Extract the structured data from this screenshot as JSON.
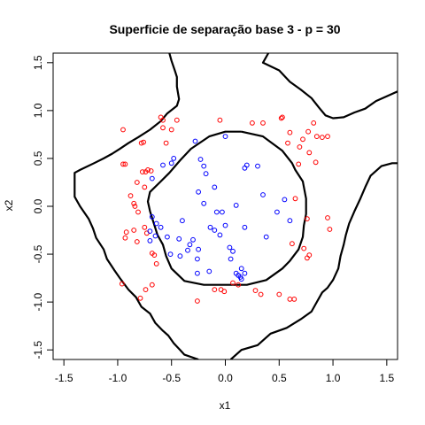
{
  "chart_data": {
    "type": "scatter",
    "title": "Superficie de separação base 3 - p = 30",
    "xlabel": "x1",
    "ylabel": "x2",
    "xlim": [
      -1.6,
      1.6
    ],
    "ylim": [
      -1.6,
      1.6
    ],
    "xticks": [
      -1.5,
      -1.0,
      -0.5,
      0.0,
      0.5,
      1.0,
      1.5
    ],
    "yticks": [
      -1.5,
      -1.0,
      -0.5,
      0.0,
      0.5,
      1.0,
      1.5
    ],
    "xtick_labels": [
      "-1.5",
      "-1.0",
      "-0.5",
      "0.0",
      "0.5",
      "1.0",
      "1.5"
    ],
    "ytick_labels": [
      "-1.5",
      "-1.0",
      "-0.5",
      "0.0",
      "0.5",
      "1.0",
      "1.5"
    ],
    "grid": false,
    "colors": {
      "class_red": "#ff0000",
      "class_blue": "#0000ff",
      "boundary": "#000000"
    },
    "series": [
      {
        "color": "#ff0000",
        "points": [
          [
            -0.95,
            0.8
          ],
          [
            -0.95,
            0.44
          ],
          [
            -0.93,
            0.44
          ],
          [
            -0.6,
            0.93
          ],
          [
            -0.58,
            0.9
          ],
          [
            -0.58,
            0.82
          ],
          [
            -0.45,
            0.9
          ],
          [
            -0.78,
            0.66
          ],
          [
            -0.76,
            0.67
          ],
          [
            -0.55,
            0.66
          ],
          [
            -0.5,
            0.8
          ],
          [
            -0.77,
            0.36
          ],
          [
            -0.74,
            0.36
          ],
          [
            -0.72,
            0.38
          ],
          [
            -0.69,
            0.37
          ],
          [
            -0.82,
            0.25
          ],
          [
            -0.75,
            0.2
          ],
          [
            -0.88,
            0.11
          ],
          [
            -0.84,
            0.0
          ],
          [
            -0.85,
            0.03
          ],
          [
            -0.81,
            -0.06
          ],
          [
            -0.92,
            -0.27
          ],
          [
            -0.93,
            -0.33
          ],
          [
            -0.85,
            -0.25
          ],
          [
            -0.75,
            -0.22
          ],
          [
            -0.73,
            -0.28
          ],
          [
            -0.82,
            -0.37
          ],
          [
            -0.68,
            -0.49
          ],
          [
            -0.66,
            -0.51
          ],
          [
            -0.64,
            -0.6
          ],
          [
            -0.96,
            -0.81
          ],
          [
            -0.79,
            -0.96
          ],
          [
            -0.74,
            -0.87
          ],
          [
            -0.68,
            -0.82
          ],
          [
            -0.05,
            0.9
          ],
          [
            0.25,
            0.87
          ],
          [
            0.35,
            0.87
          ],
          [
            0.52,
            0.92
          ],
          [
            0.53,
            0.93
          ],
          [
            0.6,
            0.77
          ],
          [
            0.77,
            0.78
          ],
          [
            0.72,
            0.7
          ],
          [
            0.69,
            0.62
          ],
          [
            0.58,
            0.66
          ],
          [
            0.82,
            0.87
          ],
          [
            0.85,
            0.73
          ],
          [
            0.9,
            0.72
          ],
          [
            0.95,
            0.73
          ],
          [
            0.78,
            0.56
          ],
          [
            0.84,
            0.46
          ],
          [
            0.68,
            0.44
          ],
          [
            0.65,
            0.08
          ],
          [
            0.76,
            -0.13
          ],
          [
            0.95,
            -0.12
          ],
          [
            0.97,
            -0.24
          ],
          [
            0.62,
            -0.39
          ],
          [
            0.73,
            -0.44
          ],
          [
            0.78,
            -0.51
          ],
          [
            0.76,
            -0.54
          ],
          [
            0.07,
            -0.8
          ],
          [
            0.12,
            -0.82
          ],
          [
            0.28,
            -0.88
          ],
          [
            0.33,
            -0.92
          ],
          [
            0.5,
            -0.92
          ],
          [
            0.6,
            -0.97
          ],
          [
            0.64,
            -0.97
          ],
          [
            -0.1,
            -0.87
          ],
          [
            -0.01,
            -0.89
          ],
          [
            -0.04,
            -0.87
          ],
          [
            -0.26,
            -0.99
          ]
        ]
      },
      {
        "color": "#0000ff",
        "points": [
          [
            -0.28,
            0.68
          ],
          [
            -0.23,
            0.49
          ],
          [
            -0.2,
            0.42
          ],
          [
            -0.48,
            0.5
          ],
          [
            -0.5,
            0.45
          ],
          [
            -0.58,
            0.43
          ],
          [
            -0.68,
            0.29
          ],
          [
            -0.18,
            0.34
          ],
          [
            -0.1,
            0.2
          ],
          [
            -0.25,
            0.15
          ],
          [
            -0.2,
            0.03
          ],
          [
            0.0,
            0.73
          ],
          [
            0.18,
            0.4
          ],
          [
            0.2,
            0.43
          ],
          [
            0.3,
            0.42
          ],
          [
            -0.68,
            -0.11
          ],
          [
            -0.64,
            -0.18
          ],
          [
            -0.6,
            -0.22
          ],
          [
            -0.7,
            -0.26
          ],
          [
            -0.65,
            -0.31
          ],
          [
            -0.54,
            -0.32
          ],
          [
            -0.7,
            -0.36
          ],
          [
            -0.4,
            -0.15
          ],
          [
            -0.43,
            -0.34
          ],
          [
            -0.33,
            -0.4
          ],
          [
            -0.3,
            -0.35
          ],
          [
            -0.25,
            -0.45
          ],
          [
            -0.35,
            -0.46
          ],
          [
            -0.42,
            -0.52
          ],
          [
            -0.51,
            -0.5
          ],
          [
            -0.26,
            -0.55
          ],
          [
            -0.26,
            -0.7
          ],
          [
            -0.1,
            -0.25
          ],
          [
            -0.14,
            -0.22
          ],
          [
            -0.08,
            -0.06
          ],
          [
            -0.03,
            -0.06
          ],
          [
            0.0,
            -0.2
          ],
          [
            -0.05,
            -0.3
          ],
          [
            0.04,
            -0.43
          ],
          [
            0.07,
            -0.47
          ],
          [
            0.05,
            -0.55
          ],
          [
            0.1,
            0.01
          ],
          [
            0.18,
            -0.22
          ],
          [
            0.35,
            0.12
          ],
          [
            0.48,
            -0.06
          ],
          [
            0.55,
            0.07
          ],
          [
            0.6,
            -0.15
          ],
          [
            0.38,
            -0.32
          ],
          [
            -0.15,
            -0.68
          ],
          [
            0.1,
            -0.7
          ],
          [
            0.12,
            -0.72
          ],
          [
            0.14,
            -0.74
          ],
          [
            0.15,
            -0.76
          ],
          [
            0.18,
            -0.7
          ],
          [
            0.15,
            -0.65
          ]
        ]
      }
    ],
    "boundaries": [
      [
        [
          0.15,
          0.78
        ],
        [
          0.35,
          0.73
        ],
        [
          0.53,
          0.58
        ],
        [
          0.62,
          0.45
        ],
        [
          0.65,
          0.38
        ],
        [
          0.72,
          0.26
        ],
        [
          0.75,
          0.08
        ],
        [
          0.75,
          -0.08
        ],
        [
          0.73,
          -0.2
        ],
        [
          0.72,
          -0.32
        ],
        [
          0.68,
          -0.45
        ],
        [
          0.6,
          -0.57
        ],
        [
          0.53,
          -0.65
        ],
        [
          0.38,
          -0.77
        ],
        [
          0.2,
          -0.82
        ],
        [
          0.0,
          -0.82
        ],
        [
          -0.2,
          -0.82
        ],
        [
          -0.38,
          -0.78
        ],
        [
          -0.5,
          -0.65
        ],
        [
          -0.55,
          -0.52
        ],
        [
          -0.58,
          -0.4
        ],
        [
          -0.63,
          -0.3
        ],
        [
          -0.67,
          -0.16
        ],
        [
          -0.7,
          -0.05
        ],
        [
          -0.72,
          0.05
        ],
        [
          -0.7,
          0.15
        ],
        [
          -0.6,
          0.26
        ],
        [
          -0.52,
          0.35
        ],
        [
          -0.42,
          0.48
        ],
        [
          -0.32,
          0.6
        ],
        [
          -0.15,
          0.73
        ],
        [
          0.0,
          0.78
        ],
        [
          0.15,
          0.78
        ]
      ],
      [
        [
          -0.52,
          1.6
        ],
        [
          -0.5,
          1.52
        ],
        [
          -0.47,
          1.42
        ],
        [
          -0.45,
          1.35
        ],
        [
          -0.45,
          1.25
        ],
        [
          -0.43,
          1.12
        ],
        [
          -0.45,
          1.05
        ],
        [
          -0.54,
          0.97
        ],
        [
          -0.6,
          0.89
        ],
        [
          -0.7,
          0.8
        ],
        [
          -0.81,
          0.72
        ],
        [
          -0.9,
          0.66
        ],
        [
          -0.98,
          0.6
        ],
        [
          -1.05,
          0.55
        ],
        [
          -1.13,
          0.5
        ],
        [
          -1.22,
          0.45
        ],
        [
          -1.35,
          0.38
        ],
        [
          -1.4,
          0.35
        ],
        [
          -1.4,
          0.1
        ],
        [
          -1.35,
          0.0
        ],
        [
          -1.27,
          -0.13
        ],
        [
          -1.23,
          -0.23
        ],
        [
          -1.2,
          -0.33
        ],
        [
          -1.13,
          -0.45
        ],
        [
          -1.1,
          -0.55
        ],
        [
          -1.03,
          -0.67
        ],
        [
          -0.98,
          -0.75
        ],
        [
          -0.9,
          -0.87
        ],
        [
          -0.83,
          -0.95
        ],
        [
          -0.78,
          -1.05
        ],
        [
          -0.7,
          -1.12
        ],
        [
          -0.65,
          -1.22
        ],
        [
          -0.58,
          -1.3
        ],
        [
          -0.53,
          -1.35
        ],
        [
          -0.48,
          -1.43
        ],
        [
          -0.42,
          -1.5
        ],
        [
          -0.38,
          -1.55
        ],
        [
          -0.25,
          -1.6
        ]
      ],
      [
        [
          0.05,
          -1.6
        ],
        [
          0.15,
          -1.5
        ],
        [
          0.3,
          -1.45
        ],
        [
          0.42,
          -1.33
        ],
        [
          0.57,
          -1.27
        ],
        [
          0.7,
          -1.18
        ],
        [
          0.8,
          -1.1
        ],
        [
          0.85,
          -1.0
        ],
        [
          0.9,
          -0.9
        ],
        [
          0.95,
          -0.85
        ],
        [
          1.0,
          -0.77
        ],
        [
          1.05,
          -0.65
        ],
        [
          1.07,
          -0.52
        ],
        [
          1.1,
          -0.4
        ],
        [
          1.12,
          -0.3
        ],
        [
          1.15,
          -0.18
        ],
        [
          1.2,
          -0.05
        ],
        [
          1.25,
          0.07
        ],
        [
          1.3,
          0.2
        ],
        [
          1.35,
          0.32
        ],
        [
          1.45,
          0.42
        ],
        [
          1.55,
          0.45
        ],
        [
          1.6,
          0.45
        ]
      ],
      [
        [
          0.4,
          1.6
        ],
        [
          0.35,
          1.5
        ],
        [
          0.5,
          1.42
        ],
        [
          0.6,
          1.3
        ],
        [
          0.7,
          1.22
        ],
        [
          0.8,
          1.13
        ],
        [
          0.87,
          1.03
        ],
        [
          0.93,
          0.95
        ],
        [
          1.0,
          0.92
        ],
        [
          1.1,
          0.93
        ],
        [
          1.2,
          0.98
        ],
        [
          1.3,
          1.02
        ],
        [
          1.4,
          1.1
        ],
        [
          1.5,
          1.15
        ],
        [
          1.6,
          1.2
        ]
      ]
    ]
  }
}
